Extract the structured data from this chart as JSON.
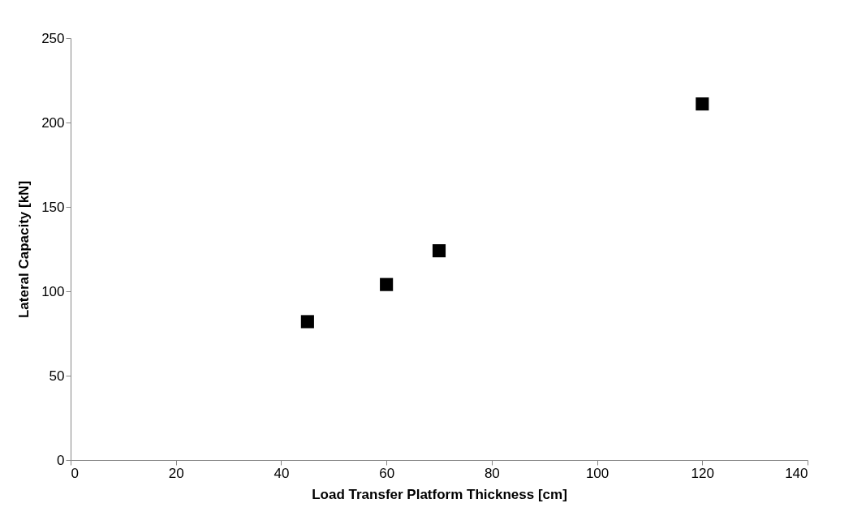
{
  "chart_data": {
    "type": "scatter",
    "xlabel": "Load Transfer Platform Thickness [cm]",
    "ylabel": "Lateral Capacity [kN]",
    "x": [
      45,
      60,
      70,
      120
    ],
    "series": [
      {
        "color": "#000000",
        "values": [
          82,
          104,
          124,
          211
        ]
      }
    ],
    "marker": "square",
    "xlim": [
      0,
      140
    ],
    "ylim": [
      0,
      250
    ],
    "xticks": [
      0,
      20,
      40,
      60,
      80,
      100,
      120,
      140
    ],
    "yticks": [
      0,
      50,
      100,
      150,
      200,
      250
    ],
    "grid": false
  }
}
